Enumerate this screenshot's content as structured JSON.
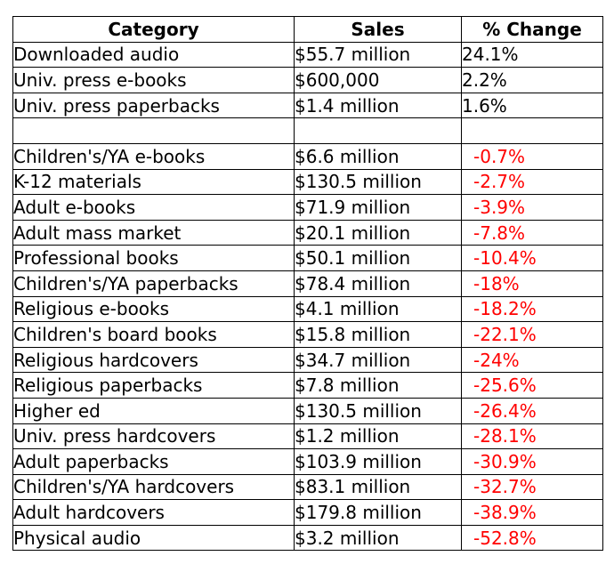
{
  "colors": {
    "negative": "#ff0000",
    "text": "#000000",
    "border": "#000000"
  },
  "headers": {
    "category": "Category",
    "sales": "Sales",
    "change": "% Change"
  },
  "rows": [
    {
      "category": "Downloaded audio",
      "sales": "$55.7 million",
      "change": "24.1%",
      "negative": false
    },
    {
      "category": "Univ. press e-books",
      "sales": "$600,000",
      "change": "2.2%",
      "negative": false
    },
    {
      "category": "Univ. press paperbacks",
      "sales": "$1.4 million",
      "change": "1.6%",
      "negative": false
    },
    {
      "category": "",
      "sales": "",
      "change": "",
      "negative": false
    },
    {
      "category": "Children's/YA e-books",
      "sales": "$6.6 million",
      "change": "-0.7%",
      "negative": true
    },
    {
      "category": "K-12 materials",
      "sales": "$130.5 million",
      "change": "-2.7%",
      "negative": true
    },
    {
      "category": "Adult e-books",
      "sales": "$71.9 million",
      "change": "-3.9%",
      "negative": true
    },
    {
      "category": "Adult mass market",
      "sales": "$20.1 million",
      "change": "-7.8%",
      "negative": true
    },
    {
      "category": "Professional books",
      "sales": "$50.1 million",
      "change": "-10.4%",
      "negative": true
    },
    {
      "category": "Children's/YA paperbacks",
      "sales": "$78.4 million",
      "change": "-18%",
      "negative": true
    },
    {
      "category": "Religious e-books",
      "sales": "$4.1 million",
      "change": "-18.2%",
      "negative": true
    },
    {
      "category": "Children's board books",
      "sales": "$15.8 million",
      "change": "-22.1%",
      "negative": true
    },
    {
      "category": "Religious hardcovers",
      "sales": "$34.7 million",
      "change": "-24%",
      "negative": true
    },
    {
      "category": "Religious paperbacks",
      "sales": "$7.8 million",
      "change": "-25.6%",
      "negative": true
    },
    {
      "category": "Higher ed",
      "sales": "$130.5 million",
      "change": "-26.4%",
      "negative": true
    },
    {
      "category": "Univ. press hardcovers",
      "sales": "$1.2 million",
      "change": "-28.1%",
      "negative": true
    },
    {
      "category": "Adult paperbacks",
      "sales": "$103.9 million",
      "change": "-30.9%",
      "negative": true
    },
    {
      "category": "Children's/YA hardcovers",
      "sales": "$83.1 million",
      "change": "-32.7%",
      "negative": true
    },
    {
      "category": "Adult hardcovers",
      "sales": "$179.8 million",
      "change": "-38.9%",
      "negative": true
    },
    {
      "category": "Physical audio",
      "sales": "$3.2 million",
      "change": "-52.8%",
      "negative": true
    }
  ]
}
